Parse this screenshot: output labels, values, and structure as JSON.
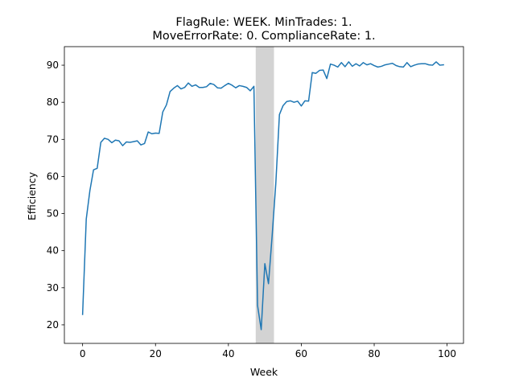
{
  "chart_data": {
    "type": "line",
    "title_lines": [
      "FlagRule: WEEK. MinTrades: 1.",
      "MoveErrorRate: 0. ComplianceRate: 1."
    ],
    "xlabel": "Week",
    "ylabel": "Efficiency",
    "xlim": [
      -5,
      104.5
    ],
    "ylim": [
      15,
      95
    ],
    "xticks": [
      0,
      20,
      40,
      60,
      80,
      100
    ],
    "yticks": [
      20,
      30,
      40,
      50,
      60,
      70,
      80,
      90
    ],
    "line_color": "#1f77b4",
    "shade_color": "#d3d3d3",
    "shaded_region": {
      "x_start": 47.5,
      "x_end": 52.5
    },
    "series": [
      {
        "name": "Efficiency",
        "x": [
          0,
          1,
          2,
          3,
          4,
          5,
          6,
          7,
          8,
          9,
          10,
          11,
          12,
          13,
          14,
          15,
          16,
          17,
          18,
          19,
          20,
          21,
          22,
          23,
          24,
          25,
          26,
          27,
          28,
          29,
          30,
          31,
          32,
          33,
          34,
          35,
          36,
          37,
          38,
          39,
          40,
          41,
          42,
          43,
          44,
          45,
          46,
          47,
          48,
          49,
          50,
          51,
          52,
          53,
          54,
          55,
          56,
          57,
          58,
          59,
          60,
          61,
          62,
          63,
          64,
          65,
          66,
          67,
          68,
          69,
          70,
          71,
          72,
          73,
          74,
          75,
          76,
          77,
          78,
          79,
          80,
          81,
          82,
          83,
          84,
          85,
          86,
          87,
          88,
          89,
          90,
          91,
          92,
          93,
          94,
          95,
          96,
          97,
          98,
          99
        ],
        "values": [
          22.8,
          48.5,
          56.2,
          61.8,
          62.2,
          69.2,
          70.3,
          70.0,
          69.1,
          69.8,
          69.6,
          68.3,
          69.3,
          69.2,
          69.4,
          69.6,
          68.5,
          68.9,
          72.0,
          71.5,
          71.7,
          71.6,
          77.4,
          79.3,
          82.9,
          83.8,
          84.5,
          83.6,
          84.0,
          85.2,
          84.3,
          84.7,
          84.0,
          84.0,
          84.2,
          85.1,
          84.8,
          83.9,
          83.8,
          84.5,
          85.1,
          84.6,
          83.9,
          84.5,
          84.3,
          84.0,
          83.1,
          84.3,
          25.2,
          18.7,
          36.5,
          31.1,
          44.0,
          58.0,
          76.7,
          79.1,
          80.2,
          80.4,
          80.0,
          80.3,
          79.0,
          80.4,
          80.3,
          88.0,
          87.8,
          88.6,
          88.7,
          86.4,
          90.3,
          90.0,
          89.5,
          90.7,
          89.6,
          90.9,
          89.7,
          90.4,
          89.8,
          90.7,
          90.1,
          90.4,
          89.9,
          89.5,
          89.7,
          90.1,
          90.3,
          90.5,
          89.9,
          89.6,
          89.5,
          90.7,
          89.6,
          90.0,
          90.3,
          90.4,
          90.4,
          90.1,
          90.0,
          90.9,
          90.0,
          90.1
        ]
      }
    ]
  }
}
